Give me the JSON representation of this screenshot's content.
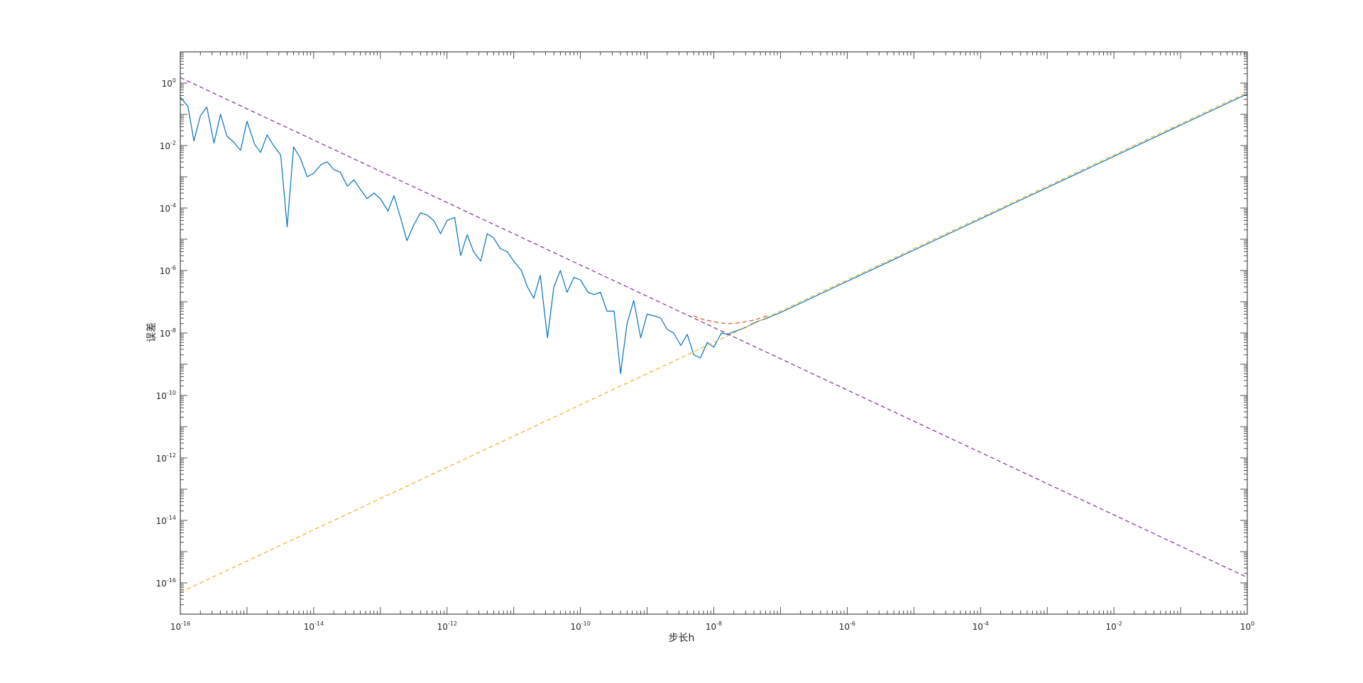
{
  "chart_data": {
    "type": "line",
    "title": "",
    "xlabel": "步长h",
    "ylabel": "误差",
    "x_scale": "log",
    "y_scale": "log",
    "xlim": [
      1e-16,
      1
    ],
    "ylim": [
      1e-17,
      10.0
    ],
    "grid": false,
    "legend": "none",
    "x_ticks": [
      {
        "base": "10",
        "exp": "-16",
        "value": 1e-16
      },
      {
        "base": "10",
        "exp": "-14",
        "value": 1e-14
      },
      {
        "base": "10",
        "exp": "-12",
        "value": 1e-12
      },
      {
        "base": "10",
        "exp": "-10",
        "value": 1e-10
      },
      {
        "base": "10",
        "exp": "-8",
        "value": 1e-08
      },
      {
        "base": "10",
        "exp": "-6",
        "value": 1e-06
      },
      {
        "base": "10",
        "exp": "-4",
        "value": 0.0001
      },
      {
        "base": "10",
        "exp": "-2",
        "value": 0.01
      },
      {
        "base": "10",
        "exp": "0",
        "value": 1
      }
    ],
    "y_ticks": [
      {
        "base": "10",
        "exp": "0",
        "value": 1
      },
      {
        "base": "10",
        "exp": "-2",
        "value": 0.01
      },
      {
        "base": "10",
        "exp": "-4",
        "value": 0.0001
      },
      {
        "base": "10",
        "exp": "-6",
        "value": 1e-06
      },
      {
        "base": "10",
        "exp": "-8",
        "value": 1e-08
      },
      {
        "base": "10",
        "exp": "-10",
        "value": 1e-10
      },
      {
        "base": "10",
        "exp": "-12",
        "value": 1e-12
      },
      {
        "base": "10",
        "exp": "-14",
        "value": 1e-14
      },
      {
        "base": "10",
        "exp": "-16",
        "value": 1e-16
      }
    ],
    "series": [
      {
        "color": "#0072BD",
        "style": "solid",
        "points": [
          [
            1e-16,
            0.35
          ],
          [
            1.3e-16,
            0.18
          ],
          [
            1.6e-16,
            0.014
          ],
          [
            2e-16,
            0.09
          ],
          [
            2.5e-16,
            0.17
          ],
          [
            3.2e-16,
            0.012
          ],
          [
            4e-16,
            0.1
          ],
          [
            5e-16,
            0.02
          ],
          [
            6.3e-16,
            0.013
          ],
          [
            8e-16,
            0.007
          ],
          [
            1e-15,
            0.06
          ],
          [
            1.3e-15,
            0.011
          ],
          [
            1.6e-15,
            0.006
          ],
          [
            2e-15,
            0.022
          ],
          [
            2.5e-15,
            0.01
          ],
          [
            3.2e-15,
            0.005
          ],
          [
            4e-15,
            2.5e-05
          ],
          [
            5e-15,
            0.009
          ],
          [
            6.3e-15,
            0.004
          ],
          [
            8e-15,
            0.001
          ],
          [
            1e-14,
            0.0013
          ],
          [
            1.3e-14,
            0.0025
          ],
          [
            1.6e-14,
            0.003
          ],
          [
            2e-14,
            0.0017
          ],
          [
            2.5e-14,
            0.0014
          ],
          [
            3.2e-14,
            0.0005
          ],
          [
            4e-14,
            0.0008
          ],
          [
            5e-14,
            0.0004
          ],
          [
            6.3e-14,
            0.0002
          ],
          [
            8e-14,
            0.0003
          ],
          [
            1e-13,
            0.0002
          ],
          [
            1.3e-13,
            8e-05
          ],
          [
            1.6e-13,
            0.00025
          ],
          [
            2e-13,
            5e-05
          ],
          [
            2.5e-13,
            9e-06
          ],
          [
            3.2e-13,
            3e-05
          ],
          [
            4e-13,
            7e-05
          ],
          [
            5e-13,
            6e-05
          ],
          [
            6.3e-13,
            4e-05
          ],
          [
            8e-13,
            1.5e-05
          ],
          [
            1e-12,
            4e-05
          ],
          [
            1.3e-12,
            5e-05
          ],
          [
            1.6e-12,
            3e-06
          ],
          [
            2e-12,
            1.4e-05
          ],
          [
            2.5e-12,
            4e-06
          ],
          [
            3.2e-12,
            2e-06
          ],
          [
            4e-12,
            1.5e-05
          ],
          [
            5e-12,
            1.1e-05
          ],
          [
            6.3e-12,
            5e-06
          ],
          [
            8e-12,
            4e-06
          ],
          [
            1e-11,
            2e-06
          ],
          [
            1.3e-11,
            1e-06
          ],
          [
            1.6e-11,
            3e-07
          ],
          [
            2e-11,
            1.3e-07
          ],
          [
            2.5e-11,
            7e-07
          ],
          [
            3.2e-11,
            7e-09
          ],
          [
            4e-11,
            3e-07
          ],
          [
            5e-11,
            1e-06
          ],
          [
            6.3e-11,
            2e-07
          ],
          [
            8e-11,
            6e-07
          ],
          [
            1e-10,
            5e-07
          ],
          [
            1.3e-10,
            2e-07
          ],
          [
            1.6e-10,
            1.7e-07
          ],
          [
            2e-10,
            2e-07
          ],
          [
            2.5e-10,
            5e-08
          ],
          [
            3.2e-10,
            5e-08
          ],
          [
            4e-10,
            5e-10
          ],
          [
            5e-10,
            2e-08
          ],
          [
            6.3e-10,
            1.1e-07
          ],
          [
            8e-10,
            7e-09
          ],
          [
            1e-09,
            4e-08
          ],
          [
            1.3e-09,
            3.5e-08
          ],
          [
            1.6e-09,
            3e-08
          ],
          [
            2e-09,
            1.3e-08
          ],
          [
            2.5e-09,
            1e-08
          ],
          [
            3.2e-09,
            4e-09
          ],
          [
            4e-09,
            9e-09
          ],
          [
            5e-09,
            2e-09
          ],
          [
            6.3e-09,
            1.6e-09
          ],
          [
            8e-09,
            5e-09
          ],
          [
            1e-08,
            3.5e-09
          ],
          [
            1.3e-08,
            1e-08
          ],
          [
            1.6e-08,
            9e-09
          ],
          [
            2e-08,
            1.1e-08
          ],
          [
            2.5e-08,
            1.3e-08
          ],
          [
            3.2e-08,
            1.6e-08
          ],
          [
            4e-08,
            2.1e-08
          ],
          [
            5e-08,
            2.5e-08
          ],
          [
            6.3e-08,
            3e-08
          ],
          [
            8e-08,
            3.7e-08
          ],
          [
            1e-07,
            4.5e-08
          ],
          [
            1e-06,
            4.5e-07
          ],
          [
            1e-05,
            4.5e-06
          ],
          [
            0.0001,
            4.5e-05
          ],
          [
            0.001,
            0.00045
          ],
          [
            0.01,
            0.0045
          ],
          [
            0.1,
            0.045
          ],
          [
            1,
            0.45
          ]
        ]
      },
      {
        "color": "#EDB120",
        "style": "dashed",
        "points": [
          [
            1e-16,
            5e-17
          ],
          [
            1e-08,
            5e-09
          ],
          [
            1,
            0.5
          ]
        ]
      },
      {
        "color": "#7E2F8E",
        "style": "dashed",
        "points": [
          [
            1e-16,
            1.5
          ],
          [
            1e-08,
            1.5e-08
          ],
          [
            1,
            1.5e-16
          ]
        ]
      },
      {
        "color": "#D95319",
        "style": "dashed",
        "points": [
          [
            5e-09,
            3.5e-08
          ],
          [
            7e-09,
            2.7e-08
          ],
          [
            1e-08,
            2.3e-08
          ],
          [
            1.4e-08,
            2.05e-08
          ],
          [
            1.73e-08,
            2e-08
          ],
          [
            2.2e-08,
            2.08e-08
          ],
          [
            3e-08,
            2.3e-08
          ],
          [
            4e-08,
            2.6e-08
          ],
          [
            5e-08,
            3e-08
          ],
          [
            7e-08,
            3.8e-08
          ]
        ]
      }
    ]
  }
}
